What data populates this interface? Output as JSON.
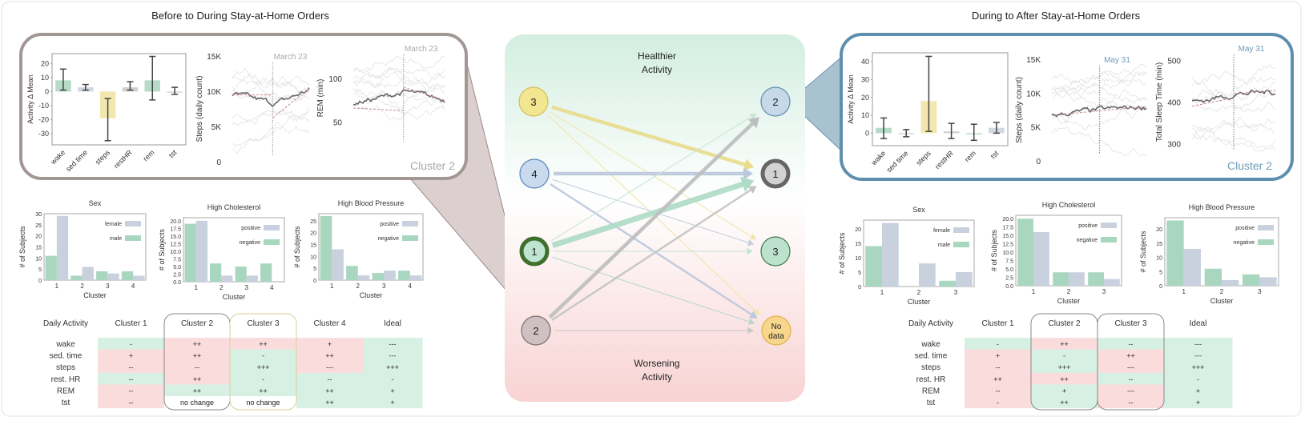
{
  "titles": {
    "left": "Before to During Stay-at-Home Orders",
    "right": "During to After Stay-at-Home Orders"
  },
  "colors": {
    "green": "#a9d6bf",
    "bluegray": "#c9d0de",
    "yellow": "#f0e3a0",
    "gray": "#c8c8c8",
    "cell_green": "#d6f0e3",
    "cell_red": "#fadcdc",
    "left_panel_border": "#a39795",
    "right_panel_border": "#5f8fae"
  },
  "center": {
    "top_label_1": "Healthier",
    "top_label_2": "Activity",
    "bottom_label_1": "Worsening",
    "bottom_label_2": "Activity",
    "left_nodes": [
      {
        "id": "L3",
        "label": "3",
        "fill": "#f3e690",
        "stroke": "#d3bf5a",
        "thick": false
      },
      {
        "id": "L4",
        "label": "4",
        "fill": "#c9d9ee",
        "stroke": "#5a86b8",
        "thick": false
      },
      {
        "id": "L1",
        "label": "1",
        "fill": "#bfe4d1",
        "stroke": "#3f6f2c",
        "thick": true
      },
      {
        "id": "L2",
        "label": "2",
        "fill": "#cfc0c2",
        "stroke": "#7b6b6d",
        "thick": false
      }
    ],
    "right_nodes": [
      {
        "id": "R2",
        "label": "2",
        "fill": "#c7d8e8",
        "stroke": "#5e8fb0",
        "thick": false
      },
      {
        "id": "R1",
        "label": "1",
        "fill": "#d2d2d2",
        "stroke": "#666666",
        "thick": true
      },
      {
        "id": "R3",
        "label": "3",
        "fill": "#bce2ce",
        "stroke": "#3c7a50",
        "thick": false
      },
      {
        "id": "RN",
        "label": "No",
        "label2": "data",
        "fill": "#f8d68c",
        "stroke": "#e0b050",
        "thick": false
      }
    ],
    "edges": [
      {
        "from": "L3",
        "to": "R1",
        "strength": 3,
        "color": "#e9dc8c"
      },
      {
        "from": "L3",
        "to": "R3",
        "strength": 1,
        "color": "#f1e6a8"
      },
      {
        "from": "L3",
        "to": "RN",
        "strength": 1,
        "color": "#f1e6a8"
      },
      {
        "from": "L4",
        "to": "R1",
        "strength": 3,
        "color": "#bcc8dc"
      },
      {
        "from": "L4",
        "to": "R3",
        "strength": 1,
        "color": "#c6cfe0"
      },
      {
        "from": "L4",
        "to": "RN",
        "strength": 2,
        "color": "#bcc8dc"
      },
      {
        "from": "L1",
        "to": "R1",
        "strength": 4,
        "color": "#aedcc6"
      },
      {
        "from": "L1",
        "to": "R2",
        "strength": 1,
        "color": "#c6e6d6"
      },
      {
        "from": "L1",
        "to": "R3",
        "strength": 1,
        "color": "#c6e6d6"
      },
      {
        "from": "L1",
        "to": "RN",
        "strength": 1,
        "color": "#b8d8c8"
      },
      {
        "from": "L2",
        "to": "R2",
        "strength": 3,
        "color": "#bdbdbd"
      },
      {
        "from": "L2",
        "to": "R1",
        "strength": 2,
        "color": "#c4c4c4"
      },
      {
        "from": "L2",
        "to": "RN",
        "strength": 1,
        "color": "#c8c8c8"
      }
    ]
  },
  "left_panel": {
    "cluster_label": "Cluster 2"
  },
  "right_panel": {
    "cluster_label": "Cluster 2"
  },
  "chart_data": [
    {
      "id": "left-activity-delta",
      "type": "bar",
      "ylabel": "Activity Δ Mean",
      "categories": [
        "wake",
        "sed time",
        "steps",
        "restHR",
        "rem",
        "tst"
      ],
      "values": [
        8,
        3,
        -19,
        3,
        8,
        0
      ],
      "error_low": [
        1,
        1,
        -35,
        1,
        -6,
        -2
      ],
      "error_high": [
        16,
        5,
        -5,
        7,
        25,
        3
      ],
      "bar_colors": [
        "#a9d6bf",
        "#c9d0de",
        "#f0e3a0",
        "#c8c8c8",
        "#a9d6bf",
        "#c9d0de"
      ],
      "ylim": [
        -38,
        27
      ],
      "yticks": [
        -30,
        -20,
        -10,
        0,
        10,
        20
      ]
    },
    {
      "id": "left-steps",
      "type": "line",
      "ylabel": "Steps (daily count)",
      "yticks": [
        "0",
        "5K",
        "10K",
        "15K"
      ],
      "ytick_values": [
        0,
        5000,
        10000,
        15000
      ],
      "ylim": [
        0,
        15000
      ],
      "annotation": "March 23"
    },
    {
      "id": "left-rem",
      "type": "line",
      "ylabel": "REM (min)",
      "yticks": [
        "50",
        "100"
      ],
      "ytick_values": [
        50,
        100
      ],
      "ylim": [
        20,
        135
      ],
      "annotation": "March 23"
    },
    {
      "id": "right-activity-delta",
      "type": "bar",
      "ylabel": "Activity Δ Mean",
      "categories": [
        "wake",
        "sed time",
        "steps",
        "restHR",
        "rem",
        "tst"
      ],
      "values": [
        3,
        0,
        18,
        1,
        0,
        3
      ],
      "error_low": [
        -3,
        -2,
        1,
        -3,
        -4,
        0
      ],
      "error_high": [
        8.5,
        2,
        43,
        5.5,
        5,
        6
      ],
      "bar_colors": [
        "#a9d6bf",
        "#c9d0de",
        "#f0e3a0",
        "#c8c8c8",
        "#a9d6bf",
        "#c9d0de"
      ],
      "ylim": [
        -7,
        45
      ],
      "yticks": [
        0,
        10,
        20,
        30,
        40
      ]
    },
    {
      "id": "right-steps",
      "type": "line",
      "ylabel": "Steps (daily count)",
      "yticks": [
        "0",
        "5K",
        "10K",
        "15K"
      ],
      "ytick_values": [
        0,
        5000,
        10000,
        15000
      ],
      "ylim": [
        0,
        15000
      ],
      "annotation": "May 31"
    },
    {
      "id": "right-tst",
      "type": "line",
      "ylabel": "Total Sleep Time (min)",
      "yticks": [
        "300",
        "400",
        "500"
      ],
      "ytick_values": [
        300,
        400,
        500
      ],
      "ylim": [
        270,
        530
      ],
      "annotation": "May 31"
    },
    {
      "id": "left-sex",
      "type": "bar",
      "title": "Sex",
      "xlabel": "Cluster",
      "ylabel": "# of Subjects",
      "categories": [
        "1",
        "2",
        "3",
        "4"
      ],
      "series": [
        {
          "name": "male",
          "values": [
            11,
            2,
            4,
            4
          ],
          "color": "#a9d6bf"
        },
        {
          "name": "female",
          "values": [
            29,
            6,
            3,
            2
          ],
          "color": "#c9d0de"
        }
      ],
      "legend_order": [
        "female",
        "male"
      ],
      "ylim": [
        0,
        30
      ],
      "yticks": [
        "0",
        "5",
        "10",
        "15",
        "20",
        "25",
        "30"
      ]
    },
    {
      "id": "left-cholesterol",
      "type": "bar",
      "title": "High Cholesterol",
      "xlabel": "Cluster",
      "ylabel": "# of Subjects",
      "categories": [
        "1",
        "2",
        "3",
        "4"
      ],
      "series": [
        {
          "name": "negative",
          "values": [
            19,
            6,
            5,
            6
          ],
          "color": "#a9d6bf"
        },
        {
          "name": "positive",
          "values": [
            20,
            2,
            2,
            0
          ],
          "color": "#c9d0de"
        }
      ],
      "legend_order": [
        "positive",
        "negative"
      ],
      "ylim": [
        0,
        21
      ],
      "yticks": [
        "0.0",
        "2.5",
        "5.0",
        "7.5",
        "10.0",
        "12.5",
        "15.0",
        "17.5",
        "20.0"
      ]
    },
    {
      "id": "left-blood-pressure",
      "type": "bar",
      "title": "High Blood Pressure",
      "xlabel": "Cluster",
      "ylabel": "# of Subjects",
      "categories": [
        "1",
        "2",
        "3",
        "4"
      ],
      "series": [
        {
          "name": "negative",
          "values": [
            27,
            6,
            3,
            4
          ],
          "color": "#a9d6bf"
        },
        {
          "name": "positive",
          "values": [
            13,
            2,
            4,
            2
          ],
          "color": "#c9d0de"
        }
      ],
      "legend_order": [
        "positive",
        "negative"
      ],
      "ylim": [
        0,
        28
      ],
      "yticks": [
        "0",
        "5",
        "10",
        "15",
        "20",
        "25"
      ]
    },
    {
      "id": "right-sex",
      "type": "bar",
      "title": "Sex",
      "xlabel": "Cluster",
      "ylabel": "# of Subjects",
      "categories": [
        "1",
        "2",
        "3"
      ],
      "series": [
        {
          "name": "male",
          "values": [
            14,
            0,
            2
          ],
          "color": "#a9d6bf"
        },
        {
          "name": "female",
          "values": [
            22,
            8,
            5
          ],
          "color": "#c9d0de"
        }
      ],
      "legend_order": [
        "female",
        "male"
      ],
      "ylim": [
        0,
        23
      ],
      "yticks": [
        "0",
        "5",
        "10",
        "15",
        "20"
      ]
    },
    {
      "id": "right-cholesterol",
      "type": "bar",
      "title": "High Cholesterol",
      "xlabel": "Cluster",
      "ylabel": "# of Subjects",
      "categories": [
        "1",
        "2",
        "3"
      ],
      "series": [
        {
          "name": "negative",
          "values": [
            20,
            4,
            4
          ],
          "color": "#a9d6bf"
        },
        {
          "name": "positive",
          "values": [
            16,
            4,
            2
          ],
          "color": "#c9d0de"
        }
      ],
      "legend_order": [
        "positive",
        "negative"
      ],
      "ylim": [
        0,
        21
      ],
      "yticks": [
        "0.0",
        "2.5",
        "5.0",
        "7.5",
        "10.0",
        "12.5",
        "15.0",
        "17.5",
        "20.0"
      ]
    },
    {
      "id": "right-blood-pressure",
      "type": "bar",
      "title": "High Blood Pressure",
      "xlabel": "Cluster",
      "ylabel": "# of Subjects",
      "categories": [
        "1",
        "2",
        "3"
      ],
      "series": [
        {
          "name": "negative",
          "values": [
            23,
            6,
            4
          ],
          "color": "#a9d6bf"
        },
        {
          "name": "positive",
          "values": [
            13,
            2,
            3
          ],
          "color": "#c9d0de"
        }
      ],
      "legend_order": [
        "positive",
        "negative"
      ],
      "ylim": [
        0,
        24
      ],
      "yticks": [
        "0",
        "5",
        "10",
        "15",
        "20"
      ]
    }
  ],
  "tables": {
    "left": {
      "headers": [
        "Daily Activity",
        "Cluster 1",
        "Cluster 2",
        "Cluster 3",
        "Cluster 4",
        "Ideal"
      ],
      "rows": [
        {
          "label": "wake",
          "cells": [
            {
              "v": "-",
              "c": "g"
            },
            {
              "v": "++",
              "c": "r"
            },
            {
              "v": "++",
              "c": "r"
            },
            {
              "v": "+",
              "c": "r"
            },
            {
              "v": "---",
              "c": "g"
            }
          ]
        },
        {
          "label": "sed. time",
          "cells": [
            {
              "v": "+",
              "c": "r"
            },
            {
              "v": "++",
              "c": "r"
            },
            {
              "v": "-",
              "c": "g"
            },
            {
              "v": "++",
              "c": "r"
            },
            {
              "v": "---",
              "c": "g"
            }
          ]
        },
        {
          "label": "steps",
          "cells": [
            {
              "v": "--",
              "c": "r"
            },
            {
              "v": "--",
              "c": "r"
            },
            {
              "v": "+++",
              "c": "g"
            },
            {
              "v": "---",
              "c": "r"
            },
            {
              "v": "+++",
              "c": "g"
            }
          ]
        },
        {
          "label": "rest. HR",
          "cells": [
            {
              "v": "--",
              "c": "g"
            },
            {
              "v": "++",
              "c": "r"
            },
            {
              "v": "-",
              "c": "g"
            },
            {
              "v": "--",
              "c": "g"
            },
            {
              "v": "-",
              "c": "g"
            }
          ]
        },
        {
          "label": "REM",
          "cells": [
            {
              "v": "--",
              "c": "r"
            },
            {
              "v": "++",
              "c": "g"
            },
            {
              "v": "++",
              "c": "g"
            },
            {
              "v": "++",
              "c": "g"
            },
            {
              "v": "+",
              "c": "g"
            }
          ]
        },
        {
          "label": "tst",
          "cells": [
            {
              "v": "--",
              "c": "r"
            },
            {
              "v": "no change",
              "c": "w"
            },
            {
              "v": "no change",
              "c": "w"
            },
            {
              "v": "++",
              "c": "g"
            },
            {
              "v": "+",
              "c": "g"
            }
          ]
        }
      ]
    },
    "right": {
      "headers": [
        "Daily Activity",
        "Cluster 1",
        "Cluster 2",
        "Cluster 3",
        "Ideal"
      ],
      "rows": [
        {
          "label": "wake",
          "cells": [
            {
              "v": "-",
              "c": "g"
            },
            {
              "v": "++",
              "c": "r"
            },
            {
              "v": "--",
              "c": "g"
            },
            {
              "v": "---",
              "c": "g"
            }
          ]
        },
        {
          "label": "sed. time",
          "cells": [
            {
              "v": "+",
              "c": "r"
            },
            {
              "v": "-",
              "c": "g"
            },
            {
              "v": "++",
              "c": "r"
            },
            {
              "v": "---",
              "c": "g"
            }
          ]
        },
        {
          "label": "steps",
          "cells": [
            {
              "v": "--",
              "c": "r"
            },
            {
              "v": "+++",
              "c": "g"
            },
            {
              "v": "---",
              "c": "r"
            },
            {
              "v": "+++",
              "c": "g"
            }
          ]
        },
        {
          "label": "rest. HR",
          "cells": [
            {
              "v": "++",
              "c": "r"
            },
            {
              "v": "++",
              "c": "r"
            },
            {
              "v": "--",
              "c": "g"
            },
            {
              "v": "-",
              "c": "g"
            }
          ]
        },
        {
          "label": "REM",
          "cells": [
            {
              "v": "--",
              "c": "r"
            },
            {
              "v": "+",
              "c": "g"
            },
            {
              "v": "---",
              "c": "r"
            },
            {
              "v": "+",
              "c": "g"
            }
          ]
        },
        {
          "label": "tst",
          "cells": [
            {
              "v": "-",
              "c": "r"
            },
            {
              "v": "++",
              "c": "g"
            },
            {
              "v": "--",
              "c": "r"
            },
            {
              "v": "+",
              "c": "g"
            }
          ]
        }
      ]
    }
  }
}
